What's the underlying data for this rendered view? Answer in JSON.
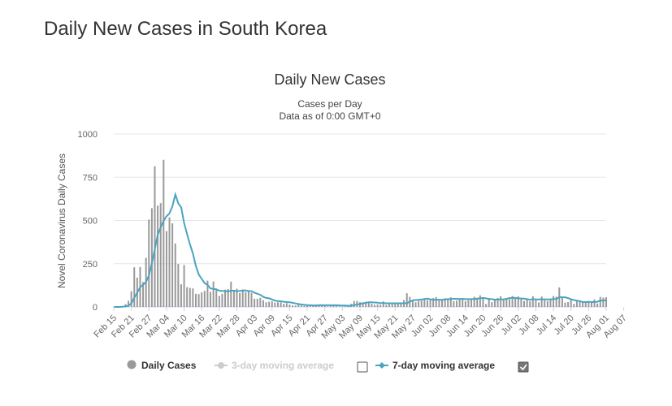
{
  "page": {
    "title": "Daily New Cases in South Korea"
  },
  "chart_data": {
    "type": "bar",
    "title": "Daily New Cases",
    "subtitle_lines": [
      "Cases per Day",
      "Data as of 0:00 GMT+0"
    ],
    "ylabel": "Novel Coronavirus Daily Cases",
    "ylim": [
      0,
      1000
    ],
    "yticks": [
      0,
      250,
      500,
      750,
      1000
    ],
    "grid": true,
    "start_date": "Feb 15",
    "xtick_labels": [
      "Feb 15",
      "Feb 21",
      "Feb 27",
      "Mar 04",
      "Mar 10",
      "Mar 16",
      "Mar 22",
      "Mar 28",
      "Apr 03",
      "Apr 09",
      "Apr 15",
      "Apr 21",
      "Apr 27",
      "May 03",
      "May 09",
      "May 15",
      "May 21",
      "May 27",
      "Jun 02",
      "Jun 08",
      "Jun 14",
      "Jun 20",
      "Jun 26",
      "Jul 02",
      "Jul 08",
      "Jul 14",
      "Jul 20",
      "Jul 26",
      "Aug 01",
      "Aug 07"
    ],
    "legend_position": "bottom",
    "series": [
      {
        "name": "Daily Cases",
        "kind": "bar",
        "color": "#999999",
        "values": [
          0,
          1,
          0,
          1,
          16,
          35,
          90,
          229,
          169,
          231,
          144,
          284,
          505,
          571,
          813,
          586,
          600,
          851,
          438,
          518,
          483,
          367,
          248,
          131,
          242,
          114,
          110,
          107,
          76,
          74,
          84,
          93,
          152,
          87,
          147,
          98,
          64,
          76,
          100,
          104,
          146,
          89,
          105,
          81,
          101,
          86,
          94,
          81,
          47,
          47,
          53,
          39,
          27,
          30,
          32,
          25,
          27,
          27,
          18,
          22,
          14,
          9,
          8,
          13,
          8,
          6,
          10,
          9,
          10,
          8,
          10,
          14,
          9,
          4,
          6,
          13,
          8,
          3,
          2,
          4,
          12,
          18,
          34,
          35,
          27,
          26,
          29,
          27,
          19,
          13,
          15,
          13,
          32,
          12,
          20,
          23,
          25,
          16,
          19,
          40,
          79,
          58,
          39,
          27,
          35,
          38,
          49,
          39,
          39,
          51,
          57,
          37,
          38,
          50,
          45,
          56,
          34,
          37,
          43,
          49,
          34,
          39,
          48,
          59,
          49,
          67,
          48,
          17,
          51,
          28,
          39,
          51,
          62,
          42,
          43,
          44,
          63,
          50,
          61,
          45,
          35,
          44,
          33,
          62,
          39,
          26,
          60,
          39,
          34,
          44,
          63,
          59,
          113,
          58,
          25,
          28,
          48,
          18,
          36,
          31,
          30,
          23,
          34,
          33,
          43,
          20,
          58,
          54,
          56
        ],
        "seven_day_average": [
          0,
          0,
          0,
          1,
          3,
          7,
          20,
          53,
          83,
          113,
          128,
          144,
          183,
          252,
          333,
          417,
          459,
          497,
          524,
          541,
          581,
          650,
          599,
          575,
          485,
          421,
          361,
          309,
          237,
          188,
          162,
          138,
          127,
          107,
          104,
          102,
          94,
          92,
          92,
          89,
          94,
          94,
          91,
          93,
          94,
          96,
          92,
          91,
          82,
          76,
          70,
          58,
          52,
          50,
          43,
          36,
          34,
          33,
          30,
          28,
          27,
          24,
          20,
          17,
          14,
          12,
          11,
          10,
          9,
          9,
          10,
          10,
          10,
          10,
          10,
          10,
          10,
          9,
          8,
          8,
          7,
          7,
          11,
          14,
          17,
          21,
          24,
          27,
          27,
          26,
          25,
          22,
          22,
          21,
          21,
          21,
          21,
          21,
          21,
          21,
          21,
          31,
          38,
          40,
          41,
          43,
          46,
          48,
          44,
          41,
          42,
          42,
          41,
          44,
          45,
          45,
          47,
          47,
          46,
          47,
          45,
          45,
          45,
          46,
          48,
          50,
          52,
          50,
          46,
          45,
          42,
          44,
          43,
          44,
          47,
          51,
          53,
          52,
          50,
          49,
          48,
          45,
          42,
          45,
          43,
          43,
          44,
          44,
          43,
          44,
          46,
          46,
          57,
          56,
          56,
          51,
          44,
          40,
          36,
          34,
          28,
          28,
          29,
          28,
          28,
          30,
          37,
          36,
          39
        ]
      }
    ],
    "legend": [
      {
        "label": "Daily Cases",
        "active": true,
        "color": "#999999",
        "checkbox": null
      },
      {
        "label": "3-day moving average",
        "active": false,
        "color": "#cccccc",
        "checkbox": false
      },
      {
        "label": "7-day moving average",
        "active": true,
        "color": "#4aa3c0",
        "checkbox": true
      }
    ]
  }
}
